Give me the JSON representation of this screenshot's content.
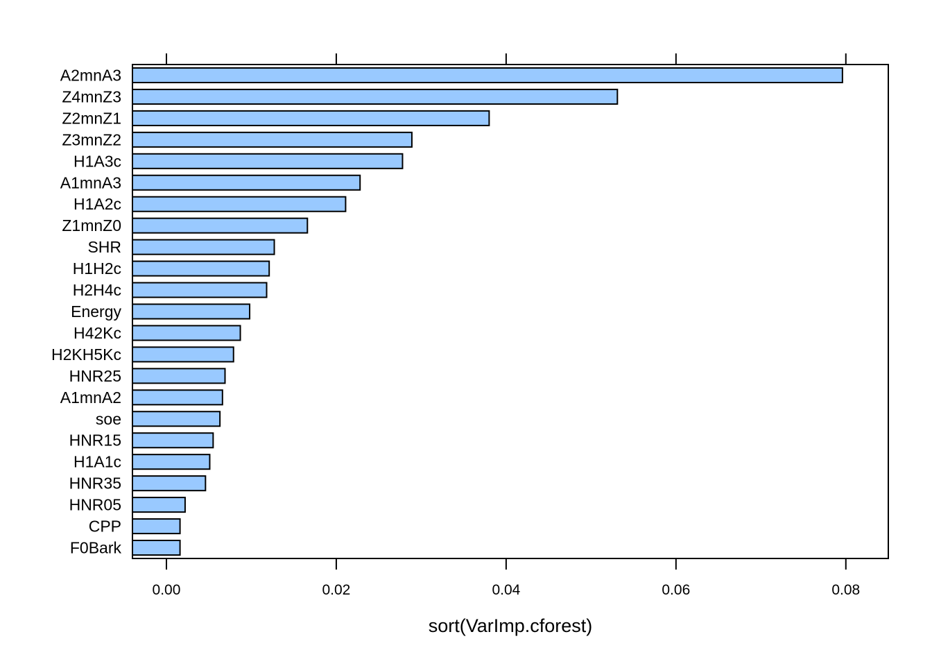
{
  "chart_data": {
    "type": "bar",
    "orientation": "horizontal",
    "title": "",
    "xlabel": "sort(VarImp.cforest)",
    "ylabel": "",
    "xlim": [
      -0.004,
      0.085
    ],
    "xticks": [
      0.0,
      0.02,
      0.04,
      0.06,
      0.08
    ],
    "xtick_labels": [
      "0.00",
      "0.02",
      "0.04",
      "0.06",
      "0.08"
    ],
    "categories": [
      "A2mnA3",
      "Z4mnZ3",
      "Z2mnZ1",
      "Z3mnZ2",
      "H1A3c",
      "A1mnA3",
      "H1A2c",
      "Z1mnZ0",
      "SHR",
      "H1H2c",
      "H2H4c",
      "Energy",
      "H42Kc",
      "H2KH5Kc",
      "HNR25",
      "A1mnA2",
      "soe",
      "HNR15",
      "H1A1c",
      "HNR35",
      "HNR05",
      "CPP",
      "F0Bark"
    ],
    "values": [
      0.0796,
      0.0531,
      0.038,
      0.0289,
      0.0278,
      0.0228,
      0.0211,
      0.0166,
      0.0127,
      0.0121,
      0.0118,
      0.0098,
      0.0087,
      0.0079,
      0.0069,
      0.0066,
      0.0063,
      0.0055,
      0.0051,
      0.0046,
      0.0022,
      0.0016,
      0.0016
    ],
    "bar_color": "#99C9FF",
    "bar_edge_color": "#000000",
    "grid": false,
    "legend": "none"
  }
}
